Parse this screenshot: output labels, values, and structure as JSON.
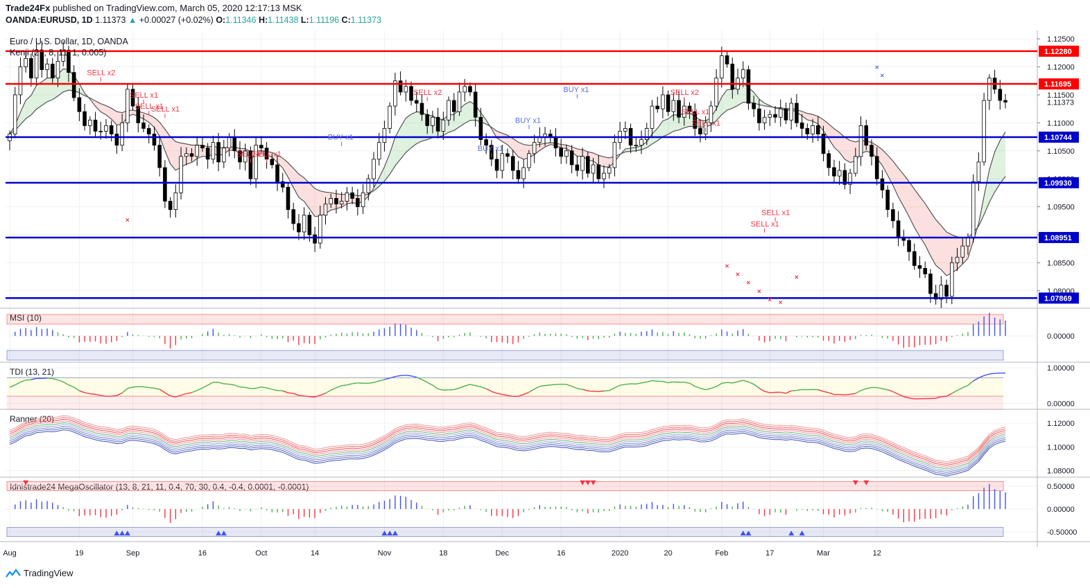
{
  "header": {
    "publisher": "Trade24Fx",
    "published_text": "published on TradingView.com, March 05, 2020 12:17:13 MSK",
    "symbol": "OANDA:EURUSD, 1D",
    "last": "1.11373",
    "change": "+0.00027 (+0.02%)",
    "ohlc": {
      "O": "1.11346",
      "H": "1.11438",
      "L": "1.11196",
      "C": "1.11373"
    },
    "up_color": "#26a69a"
  },
  "chart_data": {
    "type": "candlestick",
    "title": "Euro / U.S. Dollar, 1D, OANDA",
    "indicator_label": "Kenji (21, 8, 11, 1, 0.005)",
    "ylim": [
      1.0775,
      1.1265
    ],
    "y_ticks": [
      "1.12500",
      "1.12000",
      "1.11500",
      "1.11000",
      "1.10500",
      "1.10000",
      "1.09500",
      "1.09000",
      "1.08500",
      "1.08000"
    ],
    "x_ticks": [
      "Aug",
      "19",
      "Sep",
      "16",
      "Oct",
      "14",
      "Nov",
      "18",
      "Dec",
      "16",
      "2020",
      "20",
      "Feb",
      "17",
      "Mar",
      "12"
    ],
    "levels": [
      {
        "value": 1.1228,
        "label": "1.12280",
        "color": "#ff0000"
      },
      {
        "value": 1.11695,
        "label": "1.11695",
        "color": "#ff0000"
      },
      {
        "value": 1.10744,
        "label": "1.10744",
        "color": "#0000cc"
      },
      {
        "value": 1.0993,
        "label": "1.09930",
        "color": "#0000cc"
      },
      {
        "value": 1.08951,
        "label": "1.08951",
        "color": "#0000cc"
      },
      {
        "value": 1.07869,
        "label": "1.07869",
        "color": "#0000cc"
      }
    ],
    "last_price_label": "1.11373",
    "closes": [
      1.108,
      1.115,
      1.12,
      1.1215,
      1.118,
      1.123,
      1.1195,
      1.1205,
      1.118,
      1.121,
      1.123,
      1.119,
      1.1145,
      1.112,
      1.1095,
      1.1105,
      1.1085,
      1.1085,
      1.1095,
      1.108,
      1.106,
      1.11,
      1.116,
      1.113,
      1.11,
      1.109,
      1.108,
      1.106,
      1.102,
      1.096,
      1.0945,
      1.0975,
      1.104,
      1.1045,
      1.104,
      1.106,
      1.1055,
      1.1035,
      1.1065,
      1.103,
      1.1055,
      1.1075,
      1.105,
      1.103,
      1.105,
      1.1,
      1.106,
      1.1055,
      1.1035,
      1.1025,
      1.0995,
      1.0985,
      1.0945,
      1.092,
      1.0905,
      1.0935,
      1.09,
      1.0885,
      1.0935,
      1.0955,
      1.0965,
      1.0955,
      1.096,
      1.0975,
      1.0965,
      1.095,
      1.0975,
      1.1,
      1.1035,
      1.1065,
      1.109,
      1.113,
      1.1175,
      1.1155,
      1.1165,
      1.114,
      1.1135,
      1.1115,
      1.1095,
      1.111,
      1.1085,
      1.1105,
      1.114,
      1.112,
      1.1155,
      1.1165,
      1.1155,
      1.111,
      1.107,
      1.106,
      1.1035,
      1.1015,
      1.1045,
      1.104,
      1.1015,
      1.1,
      1.102,
      1.1045,
      1.1065,
      1.1075,
      1.108,
      1.1075,
      1.1055,
      1.104,
      1.105,
      1.1025,
      1.1015,
      1.104,
      1.101,
      1.1025,
      1.1,
      1.101,
      1.102,
      1.1065,
      1.1085,
      1.109,
      1.106,
      1.106,
      1.107,
      1.109,
      1.113,
      1.1125,
      1.115,
      1.112,
      1.114,
      1.111,
      1.113,
      1.112,
      1.109,
      1.108,
      1.11,
      1.113,
      1.118,
      1.122,
      1.1205,
      1.116,
      1.118,
      1.1195,
      1.1135,
      1.1125,
      1.11,
      1.111,
      1.1115,
      1.111,
      1.1125,
      1.1105,
      1.1135,
      1.11,
      1.109,
      1.108,
      1.1095,
      1.108,
      1.1045,
      1.102,
      1.1005,
      1.1015,
      1.099,
      1.101,
      1.104,
      1.1095,
      1.106,
      1.104,
      1.1,
      1.098,
      1.0945,
      1.0925,
      1.0895,
      1.089,
      1.087,
      1.0845,
      1.084,
      1.083,
      1.0795,
      1.0785,
      1.081,
      1.079,
      1.085,
      1.086,
      1.088,
      1.0895,
      1.0995,
      1.103,
      1.114,
      1.118,
      1.116,
      1.114,
      1.1137
    ]
  },
  "panes": [
    {
      "name": "MSI (10)",
      "ylim": [
        -1,
        1
      ],
      "y_ticks": [
        "0.00000"
      ]
    },
    {
      "name": "TDI (13, 21)",
      "ylim": [
        -0.15,
        1.1
      ],
      "y_ticks": [
        "1.00000",
        "0.00000"
      ]
    },
    {
      "name": "Ranger (20)",
      "ylim": [
        1.075,
        1.13
      ],
      "y_ticks": [
        "1.12000",
        "1.10000",
        "1.08000"
      ]
    },
    {
      "name": "Idnistrade24 MegaOscillator (13, 8, 21, 11, 0.4, 70, 30, 0.4, -0.4, 0.0001, -0.0001)",
      "ylim": [
        -0.65,
        0.65
      ],
      "y_ticks": [
        "0.50000",
        "0.00000",
        "-0.50000"
      ]
    }
  ],
  "signals": [
    {
      "i": 17,
      "price": 1.1185,
      "text": "SELL x2",
      "kind": "sell"
    },
    {
      "i": 25,
      "price": 1.1145,
      "text": "SELL x1",
      "kind": "sell"
    },
    {
      "i": 26,
      "price": 1.1125,
      "text": "SELL x1",
      "kind": "sell"
    },
    {
      "i": 29,
      "price": 1.112,
      "text": "SELL x1",
      "kind": "sell"
    },
    {
      "i": 45,
      "price": 1.104,
      "text": "SELL x1",
      "kind": "sell"
    },
    {
      "i": 48,
      "price": 1.104,
      "text": "SELL x1",
      "kind": "sell"
    },
    {
      "i": 62,
      "price": 1.107,
      "text": "BUY x1",
      "kind": "buy"
    },
    {
      "i": 78,
      "price": 1.115,
      "text": "SELL x2",
      "kind": "sell"
    },
    {
      "i": 90,
      "price": 1.105,
      "text": "BUY x1",
      "kind": "buy"
    },
    {
      "i": 97,
      "price": 1.11,
      "text": "BUY x1",
      "kind": "buy"
    },
    {
      "i": 106,
      "price": 1.1155,
      "text": "BUY x1",
      "kind": "buy"
    },
    {
      "i": 126,
      "price": 1.115,
      "text": "SELL x2",
      "kind": "sell"
    },
    {
      "i": 128,
      "price": 1.1115,
      "text": "SELL x1",
      "kind": "sell"
    },
    {
      "i": 130,
      "price": 1.1095,
      "text": "SELL x1",
      "kind": "sell"
    },
    {
      "i": 141,
      "price": 1.0915,
      "text": "SELL x1",
      "kind": "sell"
    },
    {
      "i": 143,
      "price": 1.0935,
      "text": "SELL x1",
      "kind": "sell"
    }
  ],
  "footer": {
    "brand": "TradingView"
  }
}
